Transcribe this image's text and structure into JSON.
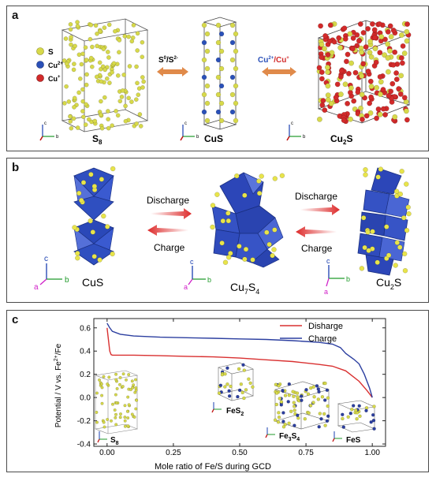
{
  "panel_a": {
    "label": "a",
    "legend": [
      {
        "symbol": "S",
        "color": "#d7d94a"
      },
      {
        "symbol": "Cu2+",
        "base": "Cu",
        "sup": "2+",
        "color": "#2a50b8"
      },
      {
        "symbol": "Cu+",
        "base": "Cu",
        "sup": "+",
        "color": "#d22a2a"
      }
    ],
    "structures": [
      {
        "name": "S8",
        "base": "S",
        "sub": "8"
      },
      {
        "name": "CuS",
        "base": "CuS",
        "sub": ""
      },
      {
        "name": "Cu2S",
        "base": "Cu",
        "sub": "2",
        "tail": "S"
      }
    ],
    "arrow1_label": {
      "a": "S",
      "asup": "0",
      "b": "/S",
      "bsup": "2-"
    },
    "arrow2_label": {
      "a": "Cu",
      "asup": "2+",
      "b": "/Cu",
      "bsup": "+"
    },
    "axes_labels": {
      "c": "c",
      "b": "b",
      "a": "a"
    }
  },
  "panel_b": {
    "label": "b",
    "structures": [
      {
        "name": "CuS",
        "base": "CuS",
        "sub": ""
      },
      {
        "name": "Cu7S4",
        "base": "Cu",
        "sub": "7",
        "tail": "S",
        "sub2": "4"
      },
      {
        "name": "Cu2S",
        "base": "Cu",
        "sub": "2",
        "tail": "S"
      }
    ],
    "arrows": [
      {
        "label": "Discharge",
        "direction": "right"
      },
      {
        "label": "Charge",
        "direction": "left"
      },
      {
        "label": "Discharge",
        "direction": "right"
      },
      {
        "label": "Charge",
        "direction": "left"
      }
    ],
    "axes_labels": {
      "c": "c",
      "b": "b",
      "a": "a"
    }
  },
  "panel_c": {
    "label": "c",
    "colors": {
      "discharge": "#d93030",
      "charge": "#2c3fa0"
    },
    "insets": [
      {
        "base": "S",
        "sub": "8"
      },
      {
        "base": "FeS",
        "sub": "2"
      },
      {
        "base": "Fe",
        "sub": "3",
        "tail": "S",
        "sub2": "4"
      },
      {
        "base": "FeS",
        "sub": ""
      }
    ]
  },
  "chart_data": {
    "type": "line",
    "title": "",
    "xlabel": "Mole ratio of Fe/S during GCD",
    "ylabel": "Potential / V vs. Fe2+/Fe",
    "ylabel_parts": {
      "a": "Potential / V vs. Fe",
      "sup": "2+",
      "b": "/Fe"
    },
    "xlim": [
      -0.05,
      1.05
    ],
    "ylim": [
      -0.42,
      0.68
    ],
    "xticks": [
      "0.00",
      "0.25",
      "0.50",
      "0.75",
      "1.00"
    ],
    "xtick_values": [
      0,
      0.25,
      0.5,
      0.75,
      1.0
    ],
    "yticks": [
      "0.6",
      "0.4",
      "0.2",
      "0.0",
      "-0.2",
      "-0.4"
    ],
    "ytick_values": [
      0.6,
      0.4,
      0.2,
      0.0,
      -0.2,
      -0.4
    ],
    "legend_position": "top-right",
    "series": [
      {
        "name": "Disharge",
        "color": "#d93030",
        "x": [
          0.0,
          0.005,
          0.01,
          0.015,
          0.02,
          0.05,
          0.1,
          0.2,
          0.3,
          0.4,
          0.5,
          0.6,
          0.7,
          0.8,
          0.85,
          0.9,
          0.95,
          0.98,
          1.0
        ],
        "y": [
          0.6,
          0.5,
          0.4,
          0.37,
          0.365,
          0.365,
          0.365,
          0.36,
          0.355,
          0.35,
          0.34,
          0.325,
          0.31,
          0.285,
          0.27,
          0.23,
          0.14,
          0.06,
          0.0
        ]
      },
      {
        "name": "Charge",
        "color": "#2c3fa0",
        "x": [
          0.0,
          0.005,
          0.01,
          0.02,
          0.05,
          0.1,
          0.2,
          0.3,
          0.4,
          0.5,
          0.6,
          0.7,
          0.8,
          0.85,
          0.88,
          0.9,
          0.93,
          0.95,
          0.97,
          0.99,
          1.0
        ],
        "y": [
          0.64,
          0.62,
          0.6,
          0.57,
          0.545,
          0.53,
          0.52,
          0.515,
          0.51,
          0.505,
          0.5,
          0.49,
          0.475,
          0.46,
          0.43,
          0.38,
          0.33,
          0.29,
          0.2,
          0.08,
          0.0
        ]
      }
    ]
  }
}
